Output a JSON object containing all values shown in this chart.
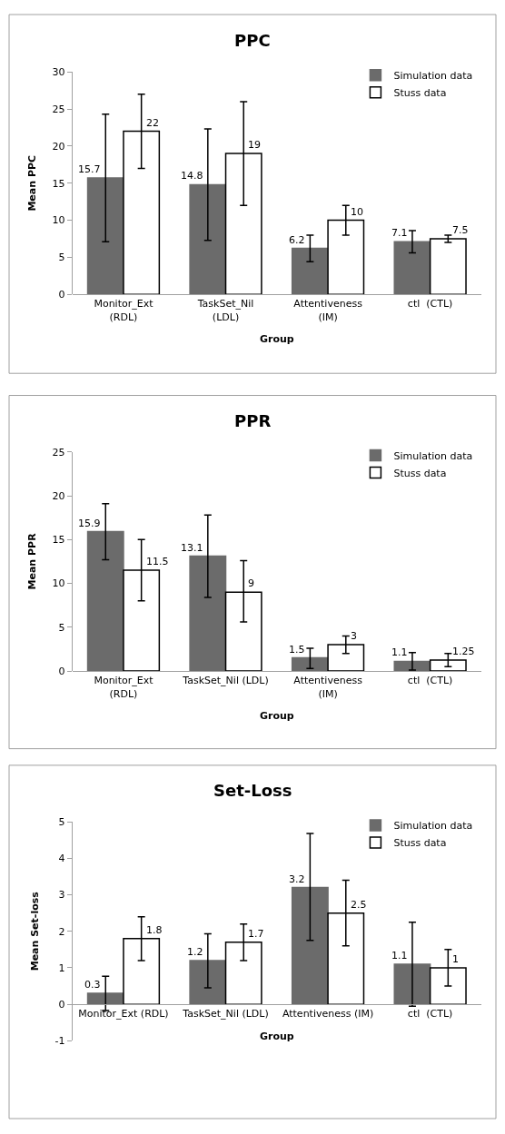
{
  "chart_data": [
    {
      "type": "bar",
      "title": "PPC",
      "xlabel": "Group",
      "ylabel": "Mean PPC",
      "categories": [
        "Monitor_Ext\n(RDL)",
        "TaskSet_Nil\n(LDL)",
        "Attentiveness\n(IM)",
        "ctl  (CTL)"
      ],
      "ylim": [
        0,
        30
      ],
      "yticks": [
        0,
        5,
        10,
        15,
        20,
        25,
        30
      ],
      "legend": "top right",
      "grid": false,
      "data_labels": true,
      "series": [
        {
          "name": "Simulation data",
          "color": "#6b6b6b",
          "values": [
            15.7,
            14.8,
            6.2,
            7.1
          ],
          "errors": [
            [
              7.1,
              24.3
            ],
            [
              7.3,
              22.3
            ],
            [
              4.4,
              8.0
            ],
            [
              5.6,
              8.6
            ]
          ]
        },
        {
          "name": "Stuss data",
          "color": "#ffffff",
          "values": [
            22,
            19,
            10,
            7.5
          ],
          "errors": [
            [
              17,
              27
            ],
            [
              12,
              26
            ],
            [
              8,
              12
            ],
            [
              7.0,
              8.0
            ]
          ]
        }
      ]
    },
    {
      "type": "bar",
      "title": "PPR",
      "xlabel": "Group",
      "ylabel": "Mean PPR",
      "categories": [
        "Monitor_Ext\n(RDL)",
        "TaskSet_Nil (LDL)",
        "Attentiveness\n(IM)",
        "ctl  (CTL)"
      ],
      "ylim": [
        0,
        25
      ],
      "yticks": [
        0,
        5,
        10,
        15,
        20,
        25
      ],
      "legend": "top right",
      "grid": false,
      "data_labels": true,
      "series": [
        {
          "name": "Simulation data",
          "color": "#6b6b6b",
          "values": [
            15.9,
            13.1,
            1.5,
            1.1
          ],
          "errors": [
            [
              12.7,
              19.1
            ],
            [
              8.4,
              17.8
            ],
            [
              0.3,
              2.6
            ],
            [
              0.1,
              2.1
            ]
          ]
        },
        {
          "name": "Stuss data",
          "color": "#ffffff",
          "values": [
            11.5,
            9,
            3,
            1.25
          ],
          "errors": [
            [
              8,
              15
            ],
            [
              5.6,
              12.6
            ],
            [
              2,
              4
            ],
            [
              0.5,
              2
            ]
          ]
        }
      ]
    },
    {
      "type": "bar",
      "title": "Set-Loss",
      "xlabel": "Group",
      "ylabel": "Mean Set-loss",
      "categories": [
        "Monitor_Ext (RDL)",
        "TaskSet_Nil (LDL)",
        "Attentiveness (IM)",
        "ctl  (CTL)"
      ],
      "ylim": [
        -1,
        5
      ],
      "yticks": [
        -1,
        0,
        1,
        2,
        3,
        4,
        5
      ],
      "legend": "top right",
      "grid": false,
      "data_labels": true,
      "series": [
        {
          "name": "Simulation data",
          "color": "#6b6b6b",
          "values": [
            0.3,
            1.2,
            3.2,
            1.1
          ],
          "errors": [
            [
              -0.17,
              0.77
            ],
            [
              0.45,
              1.93
            ],
            [
              1.75,
              4.68
            ],
            [
              -0.05,
              2.25
            ]
          ]
        },
        {
          "name": "Stuss data",
          "color": "#ffffff",
          "values": [
            1.8,
            1.7,
            2.5,
            1
          ],
          "errors": [
            [
              1.2,
              2.4
            ],
            [
              1.2,
              2.2
            ],
            [
              1.6,
              3.4
            ],
            [
              0.5,
              1.5
            ]
          ]
        }
      ]
    }
  ]
}
